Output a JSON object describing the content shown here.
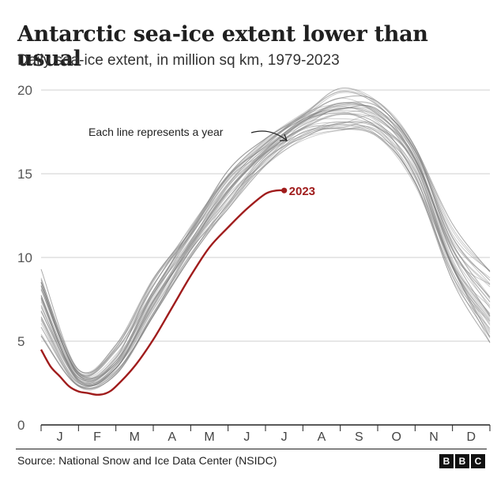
{
  "header": {
    "title": "Antarctic sea-ice extent lower than usual",
    "subtitle": "Daily sea-ice extent, in million sq km, 1979-2023"
  },
  "footer": {
    "source": "Source: National Snow and Ice Data Center (NSIDC)",
    "logo_letters": [
      "B",
      "B",
      "C"
    ]
  },
  "colors": {
    "highlight": "#a01c1c",
    "history": "#7a7a7a",
    "grid": "#cfcfcf",
    "axis": "#222222"
  },
  "chart_data": {
    "type": "line",
    "title": "Antarctic sea-ice extent lower than usual",
    "subtitle": "Daily sea-ice extent, in million sq km, 1979-2023",
    "xlabel": "",
    "ylabel": "",
    "x_tick_labels": [
      "J",
      "F",
      "M",
      "A",
      "M",
      "J",
      "J",
      "A",
      "S",
      "O",
      "N",
      "D"
    ],
    "yticks": [
      0,
      5,
      10,
      15,
      20
    ],
    "ylim": [
      0,
      20
    ],
    "grid": true,
    "legend": "none",
    "annotation": "Each line represents a year",
    "history_years": "1979-2022",
    "history_envelope": {
      "month_index": [
        0,
        1,
        2,
        3,
        4,
        5,
        6,
        7,
        8,
        9,
        10,
        11,
        12
      ],
      "low": [
        5.3,
        2.3,
        3.0,
        6.5,
        10.0,
        12.9,
        15.5,
        17.0,
        17.6,
        17.2,
        14.3,
        8.6,
        4.9
      ],
      "high": [
        9.3,
        3.3,
        4.8,
        8.8,
        11.9,
        15.2,
        17.1,
        18.6,
        20.1,
        19.3,
        16.6,
        12.0,
        9.2
      ],
      "typical": [
        7.5,
        2.8,
        3.7,
        7.5,
        11.0,
        14.2,
        16.4,
        18.1,
        18.6,
        18.3,
        15.8,
        10.0,
        7.0
      ]
    },
    "series": [
      {
        "name": "2023",
        "month_index": [
          0,
          0.25,
          0.5,
          0.75,
          1,
          1.25,
          1.5,
          1.75,
          2,
          2.5,
          3,
          3.5,
          4,
          4.5,
          5,
          5.5,
          6,
          6.3,
          6.5
        ],
        "values": [
          4.5,
          3.5,
          2.9,
          2.3,
          2.0,
          1.9,
          1.8,
          1.9,
          2.3,
          3.5,
          5.1,
          7.0,
          8.9,
          10.6,
          11.8,
          12.9,
          13.8,
          14.0,
          14.0
        ]
      }
    ]
  }
}
